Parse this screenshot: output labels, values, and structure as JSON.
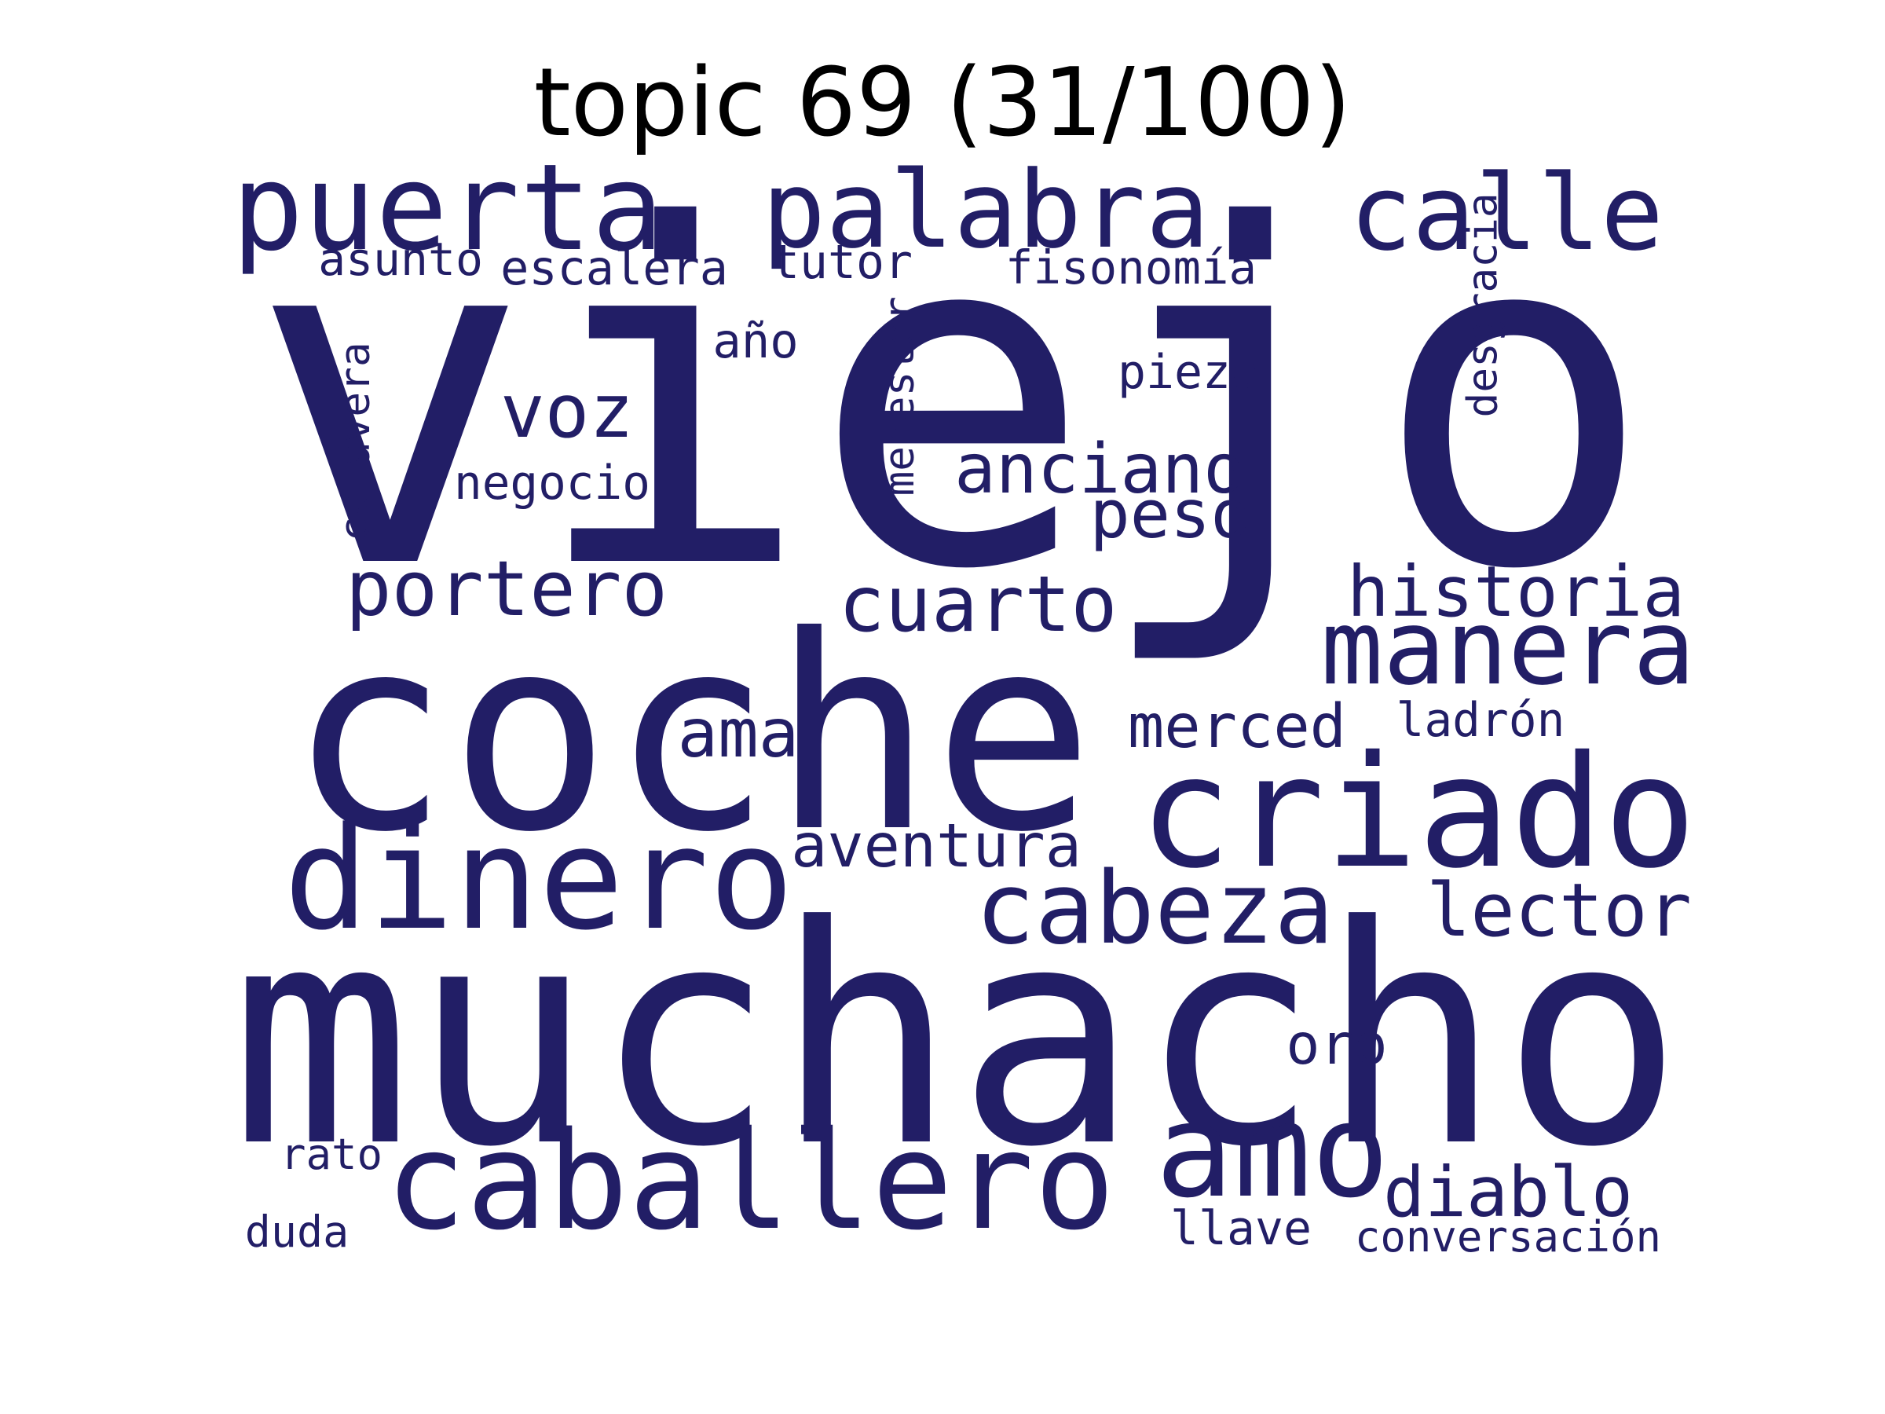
{
  "title": "topic 69 (31/100)",
  "word_color": "#221E66",
  "words": {
    "viejo": "viejo",
    "muchacho": "muchacho",
    "coche": "coche",
    "criado": "criado",
    "dinero": "dinero",
    "caballero": "caballero",
    "puerta": "puerta",
    "palabra": "palabra",
    "calle": "calle",
    "manera": "manera",
    "cabeza": "cabeza",
    "amo": "amo",
    "portero": "portero",
    "cuarto": "cuarto",
    "historia": "historia",
    "voz": "voz",
    "anciano": "anciano",
    "peso": "peso",
    "lector": "lector",
    "diablo": "diablo",
    "ama": "ama",
    "merced": "merced",
    "aventura": "aventura",
    "oro": "oro",
    "asunto": "asunto",
    "escalera": "escalera",
    "tutor": "tutor",
    "fisonomia": "fisonomía",
    "ano": "año",
    "pieza": "pieza",
    "negocio": "negocio",
    "ladron": "ladrón",
    "rato": "rato",
    "duda": "duda",
    "llave": "llave",
    "conversacion": "conversación",
    "menester": "menester",
    "desgracia": "desgracia",
    "calavera": "calavera"
  }
}
